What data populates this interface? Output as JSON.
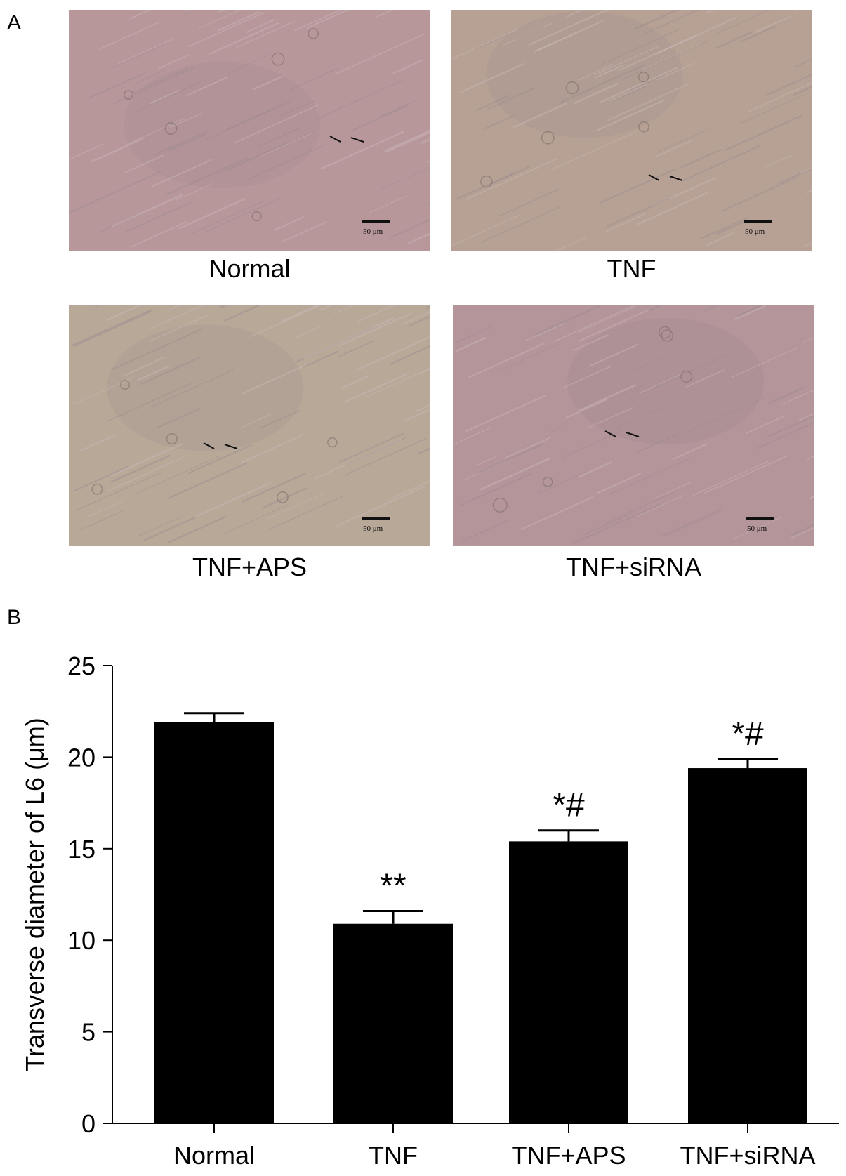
{
  "panel_a": {
    "letter": "A",
    "images": [
      {
        "caption": "Normal",
        "scale_label": "50 μm",
        "tint": "#b8979a"
      },
      {
        "caption": "TNF",
        "scale_label": "50 μm",
        "tint": "#b6a194"
      },
      {
        "caption": "TNF+APS",
        "scale_label": "50 μm",
        "tint": "#b7a898"
      },
      {
        "caption": "TNF+siRNA",
        "scale_label": "50 μm",
        "tint": "#b3959a"
      }
    ]
  },
  "panel_b": {
    "letter": "B"
  },
  "chart_data": {
    "type": "bar",
    "categories": [
      "Normal",
      "TNF",
      "TNF+APS",
      "TNF+siRNA"
    ],
    "values": [
      21.9,
      10.9,
      15.4,
      19.4
    ],
    "errors": [
      0.5,
      0.7,
      0.6,
      0.5
    ],
    "annotations": [
      "",
      "**",
      "*#",
      "*#"
    ],
    "ylabel": "Transverse diameter of L6 (μm)",
    "xlabel": "",
    "ylim": [
      0,
      25
    ],
    "yticks": [
      0,
      5,
      10,
      15,
      20,
      25
    ],
    "bar_color": "#000000",
    "grid": false
  }
}
